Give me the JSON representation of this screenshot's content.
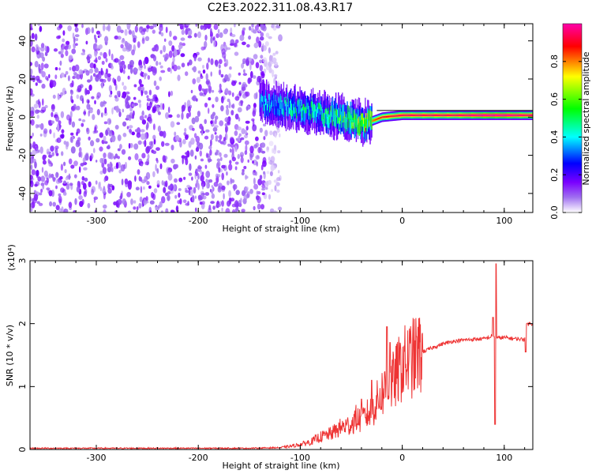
{
  "title": "C2E3.2022.311.08.43.R17",
  "chart_data": [
    {
      "type": "heatmap",
      "xlabel": "Height of straight line (km)",
      "ylabel": "Frequency (Hz)",
      "xlim": [
        -365,
        128
      ],
      "ylim": [
        -50,
        49
      ],
      "x_ticks": [
        -300,
        -200,
        -100,
        0,
        100
      ],
      "x_tick_labels": [
        "-300",
        "-200",
        "-100",
        "0",
        "100"
      ],
      "y_ticks": [
        -40,
        -20,
        0,
        20,
        40
      ],
      "y_tick_labels": [
        "-40",
        "-20",
        "0",
        "20",
        "40"
      ],
      "noise_region_x": [
        -365,
        -135
      ],
      "signal_ridge": {
        "x": [
          -140,
          -120,
          -100,
          -80,
          -60,
          -40,
          -30,
          -20,
          0,
          50,
          80,
          100,
          128
        ],
        "y": [
          8,
          6,
          4,
          2,
          0,
          -3,
          -2,
          0,
          1,
          1,
          1,
          1,
          1
        ],
        "peak_amplitude": [
          0.45,
          0.5,
          0.55,
          0.6,
          0.65,
          0.8,
          0.8,
          0.9,
          0.95,
          0.95,
          1.0,
          1.0,
          0.95
        ]
      },
      "colorbar": {
        "label": "Normalized spectral amplitude",
        "range": [
          0.0,
          1.0
        ],
        "ticks": [
          0.0,
          0.2,
          0.4,
          0.6,
          0.8
        ],
        "tick_labels": [
          "0.0",
          "0.2",
          "0.4",
          "0.6",
          "0.8"
        ],
        "colormap": [
          "#ffffff",
          "#8a2be2",
          "#0000ff",
          "#00ffff",
          "#00ff00",
          "#ffff00",
          "#ff0000",
          "#ff00aa"
        ]
      },
      "grid": false
    },
    {
      "type": "line",
      "xlabel": "Height of straight line (km)",
      "ylabel": "SNR (10 * v/v)",
      "y_exponent_label": "(x10⁴)",
      "xlim": [
        -365,
        128
      ],
      "ylim": [
        0,
        3
      ],
      "x_ticks": [
        -300,
        -200,
        -100,
        0,
        100
      ],
      "x_tick_labels": [
        "-300",
        "-200",
        "-100",
        "0",
        "100"
      ],
      "y_ticks": [
        0,
        1,
        2,
        3
      ],
      "y_tick_labels": [
        "0",
        "1",
        "2",
        "3"
      ],
      "series_color": "#ee3333",
      "x": [
        -365,
        -300,
        -200,
        -150,
        -120,
        -110,
        -100,
        -90,
        -80,
        -70,
        -60,
        -50,
        -45,
        -40,
        -35,
        -30,
        -25,
        -20,
        -15,
        -10,
        -5,
        0,
        10,
        20,
        30,
        40,
        50,
        60,
        70,
        80,
        85,
        88,
        90,
        92,
        95,
        100,
        110,
        120,
        122,
        128
      ],
      "y": [
        0.02,
        0.02,
        0.02,
        0.02,
        0.03,
        0.05,
        0.08,
        0.12,
        0.2,
        0.25,
        0.35,
        0.4,
        0.5,
        0.45,
        0.55,
        0.6,
        0.75,
        0.9,
        1.0,
        1.05,
        1.2,
        1.35,
        1.45,
        1.55,
        1.62,
        1.68,
        1.72,
        1.74,
        1.75,
        1.76,
        1.78,
        1.8,
        1.8,
        1.78,
        1.77,
        1.78,
        1.76,
        1.75,
        2.0,
        2.0
      ],
      "spikes": [
        {
          "x": -40,
          "y": 0.8
        },
        {
          "x": -30,
          "y": 1.1
        },
        {
          "x": -15,
          "y": 1.95
        },
        {
          "x": -12,
          "y": 1.7
        },
        {
          "x": 89,
          "y": 2.1
        },
        {
          "x": 91,
          "y": 0.4
        },
        {
          "x": 92,
          "y": 2.95
        },
        {
          "x": 121,
          "y": 1.55
        }
      ],
      "grid": false
    }
  ]
}
